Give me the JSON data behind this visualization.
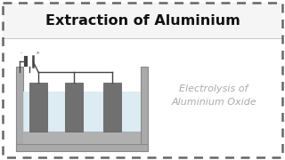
{
  "title": "Extraction of Aluminium",
  "subtitle_line1": "Electrolysis of",
  "subtitle_line2": "Aluminium Oxide",
  "bg_color": "#ffffff",
  "border_color": "#666666",
  "title_color": "#111111",
  "subtitle_color": "#aaaaaa",
  "tank_wall_color": "#aaaaaa",
  "tank_wall_edge": "#888888",
  "tank_liquid_color": "#d8e8f0",
  "tank_sediment_color": "#b0b0b0",
  "electrode_color": "#707070",
  "electrode_edge": "#555555",
  "wire_color": "#444444",
  "title_fontsize": 11.5,
  "subtitle_fontsize": 8.0,
  "figsize": [
    3.2,
    1.8
  ],
  "dpi": 100,
  "title_bg_color": "#f5f5f5",
  "title_divider_color": "#cccccc"
}
